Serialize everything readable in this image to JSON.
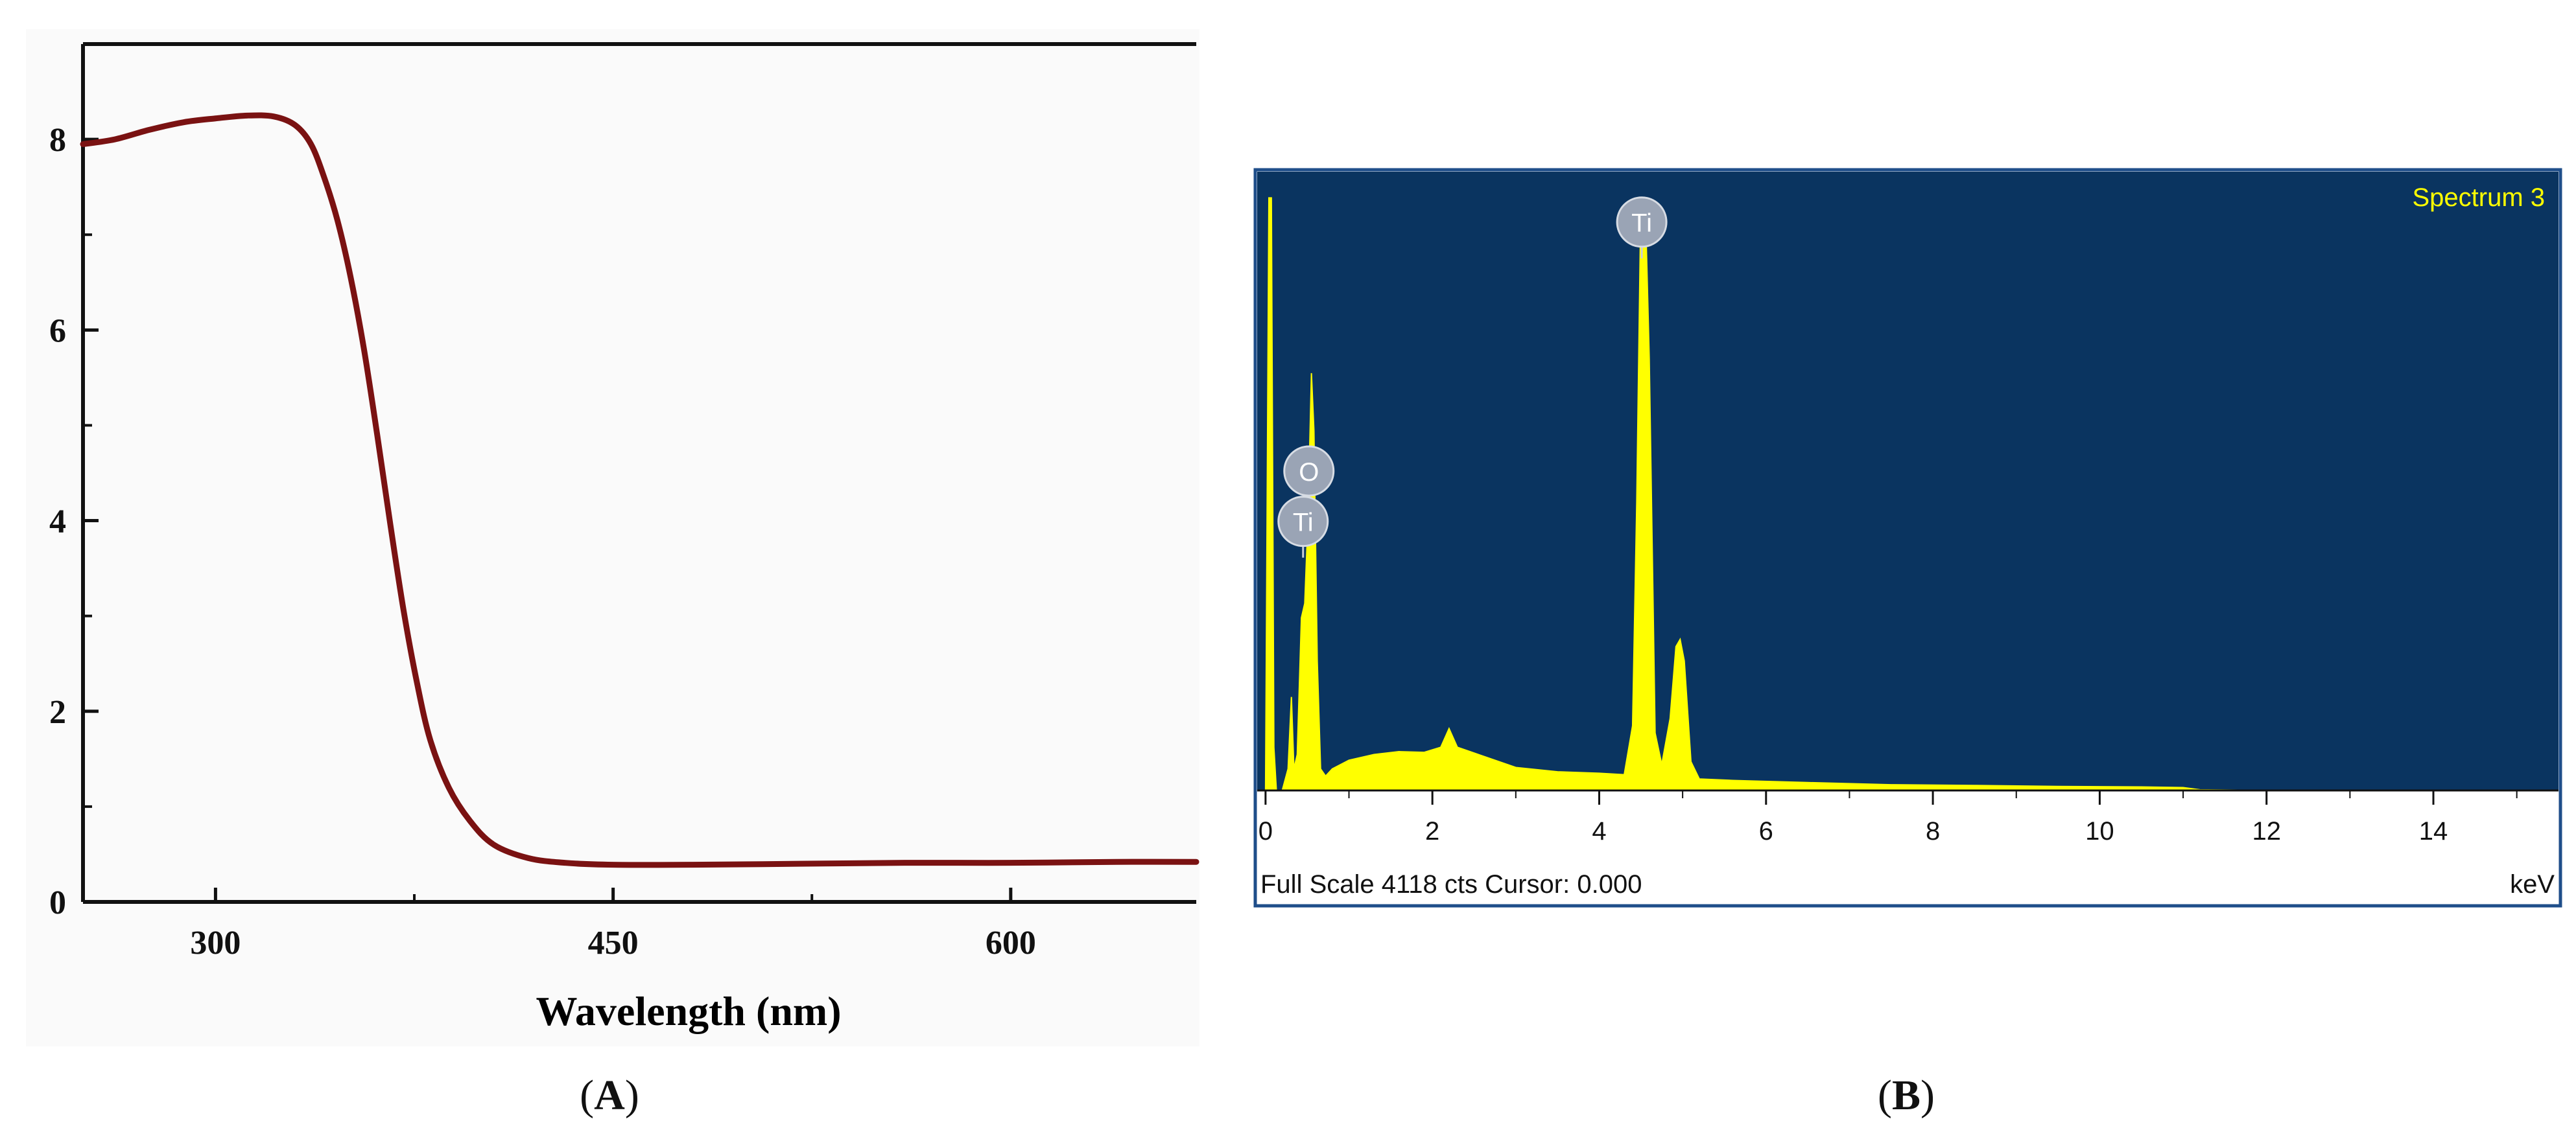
{
  "panels": {
    "A": {
      "label": "A",
      "xlabel": "Wavelength (nm)",
      "ylabel": "",
      "line_color": "#7a1212"
    },
    "B": {
      "label": "B",
      "spectrum_name": "Spectrum 3",
      "footer_left": "Full Scale 4118 cts Cursor: 0.000",
      "unit": "keV",
      "background_color": "#0a3460",
      "fill_color": "#ffff00",
      "peak_markers": [
        {
          "text": "O",
          "x": 0.52,
          "y": 2220
        },
        {
          "text": "Ti",
          "x": 0.45,
          "y": 1870
        },
        {
          "text": "Ti",
          "x": 4.51,
          "y": 3950
        }
      ]
    }
  },
  "chart_data": [
    {
      "type": "line",
      "title": "",
      "xlabel": "Wavelength (nm)",
      "ylabel": "",
      "xlim": [
        250,
        670
      ],
      "ylim": [
        0,
        9
      ],
      "xticks": [
        300,
        450,
        600
      ],
      "yticks": [
        0,
        2,
        4,
        6,
        8
      ],
      "grid": false,
      "series": [
        {
          "x": [
            250,
            262,
            275,
            288,
            300,
            312,
            322,
            330,
            336,
            341,
            346,
            351,
            356,
            361,
            366,
            371,
            376,
            381,
            388,
            396,
            405,
            418,
            432,
            450,
            480,
            520,
            560,
            600,
            640,
            670
          ],
          "y": [
            7.95,
            8.0,
            8.1,
            8.18,
            8.22,
            8.25,
            8.24,
            8.15,
            7.95,
            7.6,
            7.15,
            6.55,
            5.8,
            4.9,
            3.95,
            3.05,
            2.3,
            1.7,
            1.2,
            0.85,
            0.6,
            0.46,
            0.41,
            0.39,
            0.39,
            0.4,
            0.41,
            0.41,
            0.42,
            0.42
          ]
        }
      ]
    },
    {
      "type": "area",
      "title": "Spectrum 3",
      "xlabel": "keV",
      "ylabel": "",
      "xlim": [
        -0.1,
        15.5
      ],
      "ylim": [
        0,
        4300
      ],
      "xticks": [
        0,
        2,
        4,
        6,
        8,
        10,
        12,
        14
      ],
      "grid": false,
      "series": [
        {
          "x": [
            0.0,
            0.04,
            0.07,
            0.1,
            0.13,
            0.2,
            0.27,
            0.31,
            0.34,
            0.38,
            0.43,
            0.47,
            0.51,
            0.55,
            0.58,
            0.62,
            0.66,
            0.72,
            0.8,
            1.0,
            1.3,
            1.6,
            1.9,
            2.1,
            2.2,
            2.3,
            2.5,
            3.0,
            3.5,
            4.0,
            4.3,
            4.4,
            4.45,
            4.5,
            4.55,
            4.6,
            4.67,
            4.75,
            4.85,
            4.92,
            4.97,
            5.02,
            5.1,
            5.2,
            5.6,
            6.5,
            7.5,
            8.5,
            9.5,
            10.5,
            11.0,
            11.2,
            12.0,
            15.5
          ],
          "y": [
            0,
            4118,
            4118,
            300,
            0,
            0,
            150,
            650,
            150,
            250,
            1200,
            1300,
            1900,
            2900,
            2500,
            900,
            150,
            100,
            150,
            210,
            250,
            270,
            265,
            300,
            430,
            300,
            260,
            160,
            130,
            120,
            110,
            450,
            2000,
            4118,
            4118,
            3000,
            400,
            180,
            500,
            1000,
            1050,
            900,
            200,
            80,
            70,
            55,
            40,
            35,
            28,
            25,
            20,
            5,
            0,
            0
          ]
        }
      ]
    }
  ]
}
